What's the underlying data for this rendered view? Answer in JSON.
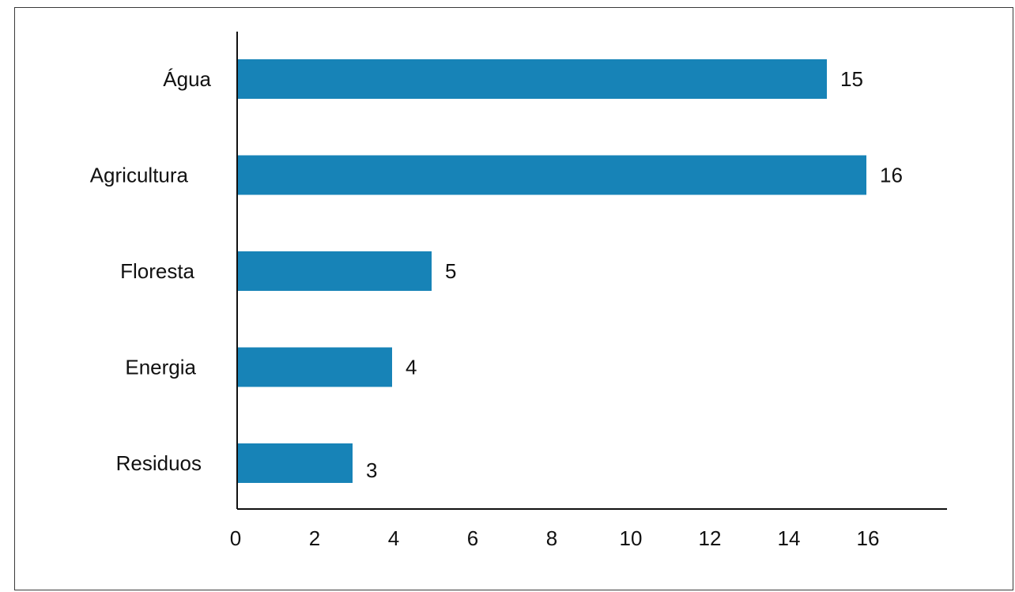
{
  "chart_data": {
    "type": "bar",
    "orientation": "horizontal",
    "categories": [
      "Água",
      "Agricultura",
      "Floresta",
      "Energia",
      "Residuos"
    ],
    "values": [
      15,
      16,
      5,
      4,
      3
    ],
    "data_labels": [
      "15",
      "16",
      "5",
      "4",
      "3"
    ],
    "xlim": [
      0,
      18
    ],
    "xticks": [
      "0",
      "2",
      "4",
      "6",
      "8",
      "10",
      "12",
      "14",
      "16"
    ],
    "grid": false,
    "legend": "none",
    "bar_color": "#1783B7"
  }
}
